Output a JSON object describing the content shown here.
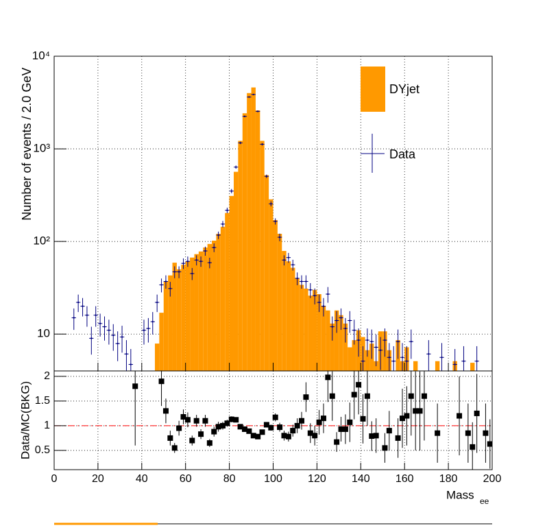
{
  "chart_data": [
    {
      "type": "histogram",
      "ylabel": "Number of events / 2.0 GeV",
      "ylog": true,
      "grid": true,
      "xlim": [
        0,
        200
      ],
      "ylim": [
        4,
        10000
      ],
      "yticks": [
        10,
        {
          "value": 100,
          "label": "10²"
        },
        {
          "value": 1000,
          "label": "10³"
        },
        {
          "value": 10000,
          "label": "10⁴"
        }
      ],
      "legend": "upper right",
      "bins": [
        46,
        48,
        50,
        52,
        54,
        56,
        58,
        60,
        62,
        64,
        66,
        68,
        70,
        72,
        74,
        76,
        78,
        80,
        82,
        84,
        86,
        88,
        90,
        92,
        94,
        96,
        98,
        100,
        102,
        104,
        106,
        108,
        110,
        112,
        114,
        116,
        118,
        120,
        122,
        124,
        126,
        128,
        130,
        132,
        134,
        136,
        138,
        140,
        142,
        144,
        146,
        148,
        150,
        152,
        154,
        156,
        158,
        160,
        162,
        164,
        166,
        168,
        170,
        172,
        174,
        176,
        178,
        180,
        182,
        184,
        186,
        188,
        190,
        192
      ],
      "series": [
        {
          "name": "DYjet",
          "color": "#ff9900",
          "counts": [
            7.9,
            17,
            37,
            43,
            59,
            50,
            56,
            61,
            67,
            73,
            78,
            86,
            94,
            102,
            121,
            144,
            203,
            310,
            565,
            1220,
            2420,
            4000,
            4600,
            2600,
            1220,
            520,
            285,
            170,
            121,
            79,
            61,
            52,
            40,
            34,
            31,
            26,
            30,
            27,
            20,
            18,
            13,
            18,
            16,
            13,
            7.2,
            8.6,
            11,
            9.3,
            6.7,
            7.9,
            5.1,
            10.7,
            10.7,
            6.7,
            0,
            8.6,
            5.1,
            7.2,
            0,
            5.1,
            0,
            0,
            0,
            0,
            5.1,
            0,
            0,
            0,
            5.1,
            0,
            0,
            0,
            4.9
          ]
        }
      ],
      "data": {
        "name": "Data",
        "color": "#000080",
        "xerr": 1,
        "x": [
          9,
          11,
          13,
          15,
          17,
          19,
          21,
          23,
          25,
          27,
          29,
          31,
          33,
          35,
          41,
          43,
          45,
          47,
          49,
          51,
          53,
          55,
          57,
          59,
          61,
          63,
          65,
          67,
          69,
          71,
          73,
          75,
          77,
          79,
          81,
          83,
          85,
          87,
          89,
          91,
          93,
          95,
          97,
          99,
          101,
          103,
          105,
          107,
          109,
          111,
          113,
          115,
          117,
          119,
          121,
          123,
          125,
          127,
          129,
          131,
          133,
          135,
          137,
          139,
          141,
          143,
          145,
          147,
          149,
          151,
          153,
          155,
          157,
          159,
          161,
          163,
          171,
          177,
          183,
          187,
          193
        ],
        "values": [
          15,
          22,
          20,
          16,
          9,
          16,
          13,
          12,
          11,
          9.7,
          7.9,
          9.3,
          6.1,
          4.7,
          11,
          11.5,
          13.6,
          22,
          34,
          37,
          31,
          47,
          47,
          58,
          61,
          45,
          63,
          61,
          79,
          59,
          86,
          117,
          154,
          217,
          350,
          635,
          1160,
          2240,
          3630,
          3860,
          2540,
          1120,
          505,
          255,
          165,
          111,
          63,
          67,
          56,
          40,
          37,
          37,
          30,
          26,
          22,
          20,
          27,
          12,
          14,
          15,
          11.5,
          14,
          11,
          8.6,
          5.1,
          8.6,
          8.3,
          7.2,
          6.7,
          8.6,
          5.6,
          5.1,
          8.3,
          5.6,
          5.1,
          8.3,
          6.1,
          5.6,
          4.7,
          5.1,
          5.1
        ],
        "errors": [
          3.9,
          4.7,
          4.5,
          4,
          3,
          4,
          3.6,
          3.5,
          3.3,
          3.1,
          2.8,
          3,
          2.5,
          2.2,
          3.3,
          3.4,
          3.7,
          4.7,
          5.8,
          6.1,
          5.6,
          6.9,
          6.9,
          7.6,
          7.8,
          6.7,
          7.9,
          7.8,
          8.9,
          7.7,
          9.3,
          10.8,
          12.4,
          14.7,
          18.7,
          25,
          34,
          47,
          60,
          62,
          50,
          33,
          22,
          16,
          12.8,
          10.5,
          7.9,
          8.2,
          7.5,
          6.3,
          6.1,
          6.1,
          5.5,
          5.1,
          4.7,
          4.5,
          5.2,
          3.5,
          3.7,
          3.9,
          3.4,
          3.7,
          3.3,
          2.9,
          2.3,
          2.9,
          2.9,
          2.7,
          2.6,
          2.9,
          2.4,
          2.3,
          2.9,
          2.4,
          2.3,
          2.9,
          2.5,
          2.4,
          2.2,
          2.3,
          2.3
        ]
      }
    },
    {
      "type": "errorbar",
      "ylabel": "Data/MC(BKG)",
      "xlabel": "Mass",
      "xlabel_sub": "ee",
      "grid": true,
      "xlim": [
        0,
        200
      ],
      "xticks": [
        0,
        20,
        40,
        60,
        80,
        100,
        120,
        140,
        160,
        180,
        200
      ],
      "ylim": [
        0.11,
        2.11
      ],
      "yticks": [
        0.5,
        1,
        1.5,
        2
      ],
      "reference_line": {
        "value": 1,
        "color": "#ff0000"
      },
      "color": "#000000",
      "xerr": 1,
      "x": [
        37,
        49,
        51,
        53,
        55,
        57,
        59,
        61,
        63,
        65,
        67,
        69,
        71,
        73,
        75,
        77,
        79,
        81,
        83,
        85,
        87,
        89,
        91,
        93,
        95,
        97,
        99,
        101,
        103,
        105,
        107,
        109,
        111,
        113,
        115,
        117,
        119,
        121,
        123,
        125,
        127,
        129,
        131,
        133,
        135,
        137,
        139,
        141,
        143,
        145,
        147,
        151,
        153,
        157,
        159,
        161,
        163,
        165,
        167,
        169,
        175,
        185,
        189,
        191,
        193,
        197,
        199
      ],
      "values": [
        1.8,
        1.9,
        1.3,
        0.75,
        0.55,
        0.95,
        1.18,
        1.12,
        0.7,
        1.1,
        0.83,
        1.1,
        0.65,
        0.88,
        0.98,
        1.0,
        1.05,
        1.13,
        1.12,
        0.98,
        0.93,
        0.89,
        0.8,
        0.78,
        0.87,
        1.02,
        0.96,
        1.17,
        0.97,
        0.8,
        0.78,
        0.9,
        1.0,
        1.1,
        1.58,
        0.85,
        0.8,
        1.07,
        1.15,
        1.98,
        1.6,
        0.67,
        0.93,
        0.93,
        1.07,
        1.63,
        1.83,
        1.14,
        1.6,
        0.79,
        0.8,
        0.55,
        0.9,
        0.75,
        1.15,
        1.2,
        1.6,
        1.3,
        1.3,
        1.6,
        0.85,
        1.2,
        0.85,
        0.57,
        1.25,
        0.85,
        0.63
      ],
      "errors": [
        1.2,
        0.5,
        0.25,
        0.15,
        0.1,
        0.15,
        0.15,
        0.15,
        0.1,
        0.12,
        0.1,
        0.12,
        0.08,
        0.1,
        0.1,
        0.08,
        0.07,
        0.06,
        0.05,
        0.03,
        0.02,
        0.015,
        0.015,
        0.02,
        0.03,
        0.04,
        0.06,
        0.08,
        0.09,
        0.1,
        0.1,
        0.12,
        0.15,
        0.18,
        0.3,
        0.2,
        0.2,
        0.25,
        0.3,
        0.5,
        0.5,
        0.2,
        0.25,
        0.3,
        0.4,
        0.5,
        0.6,
        0.5,
        0.6,
        0.3,
        0.35,
        0.3,
        0.4,
        0.4,
        0.6,
        0.6,
        0.8,
        0.8,
        0.8,
        0.9,
        0.6,
        0.8,
        0.6,
        0.5,
        0.8,
        0.6,
        0.5
      ]
    }
  ]
}
